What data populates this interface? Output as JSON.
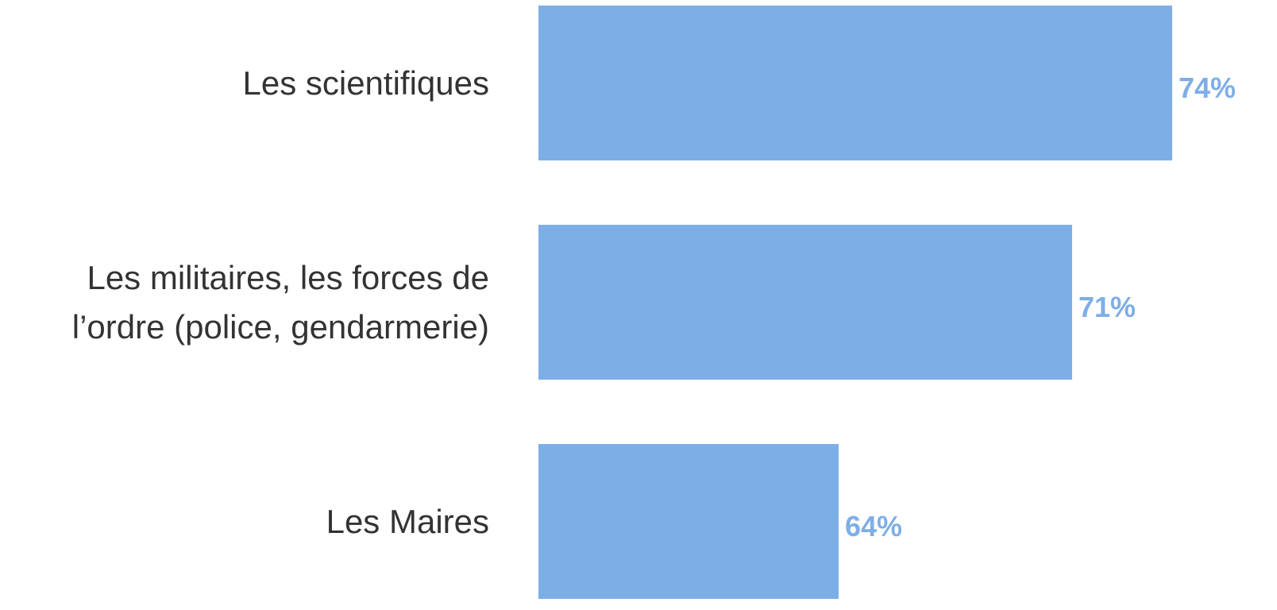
{
  "chart_data": {
    "type": "bar",
    "orientation": "horizontal",
    "categories": [
      "Les scientifiques",
      "Les militaires, les forces de l’ordre (police, gendarmerie)",
      "Les Maires"
    ],
    "values": [
      74,
      71,
      64
    ],
    "value_labels": [
      "74%",
      "71%",
      "64%"
    ],
    "color": "#7eaee6",
    "xlim": [
      55,
      74
    ]
  }
}
